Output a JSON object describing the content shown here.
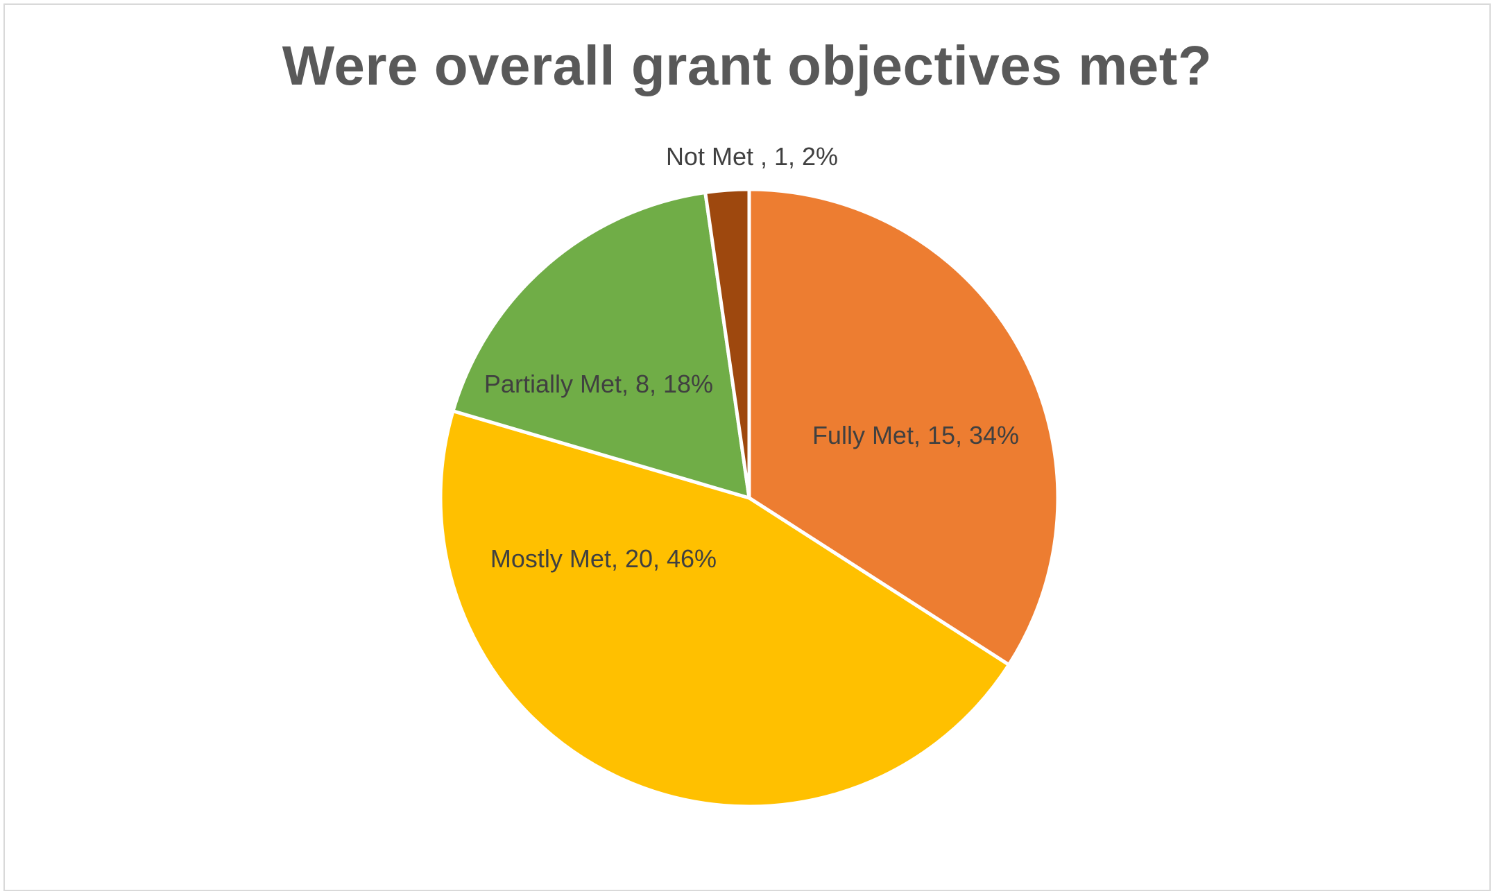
{
  "chart_data": {
    "type": "pie",
    "title": "Were overall grant objectives met?",
    "categories": [
      "Fully Met",
      "Mostly Met",
      "Partially Met",
      "Not Met "
    ],
    "values": [
      15,
      20,
      8,
      1
    ],
    "percent_labels": [
      "34%",
      "46%",
      "18%",
      "2%"
    ],
    "data_labels": [
      "Fully Met, 15, 34%",
      "Mostly Met, 20, 46%",
      "Partially Met, 8, 18%",
      "Not Met , 1, 2%"
    ],
    "colors": [
      "#ED7D31",
      "#FFC000",
      "#70AD47",
      "#9E480E"
    ],
    "start_angle": "12 o'clock",
    "direction": "clockwise",
    "legend": "none"
  }
}
